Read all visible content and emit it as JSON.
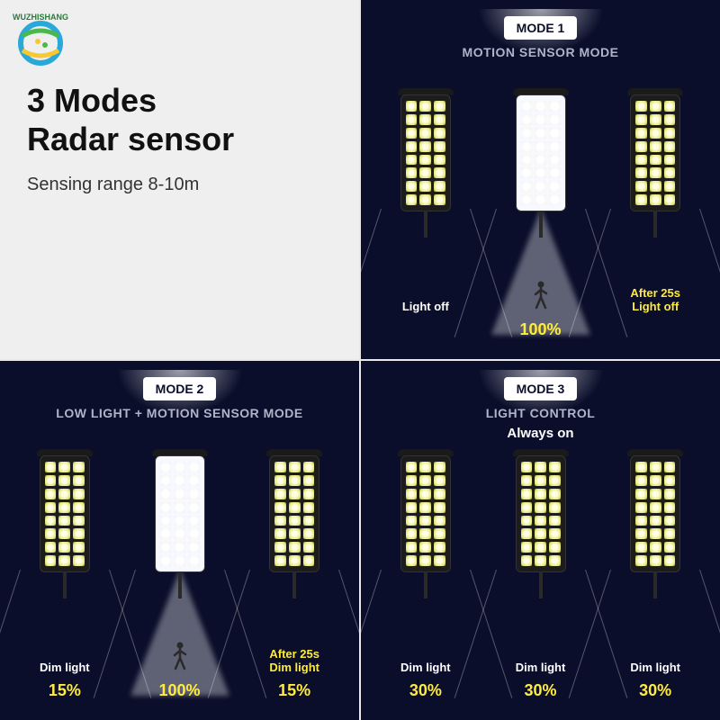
{
  "brand": "WUZHISHANG",
  "header": {
    "title_line1": "3 Modes",
    "title_line2": "Radar sensor",
    "subtitle": "Sensing range 8-10m"
  },
  "colors": {
    "bg_dark": "#0a0e2a",
    "bg_light": "#efefef",
    "accent_yellow": "#ffeb3b",
    "text_muted": "#b0b4c8"
  },
  "modes": [
    {
      "badge": "MODE 1",
      "title": "MOTION SENSOR MODE",
      "sub": "",
      "lights": [
        {
          "state": "off",
          "caption_top": "Light off",
          "caption_top_color": "white",
          "pct": "",
          "person": false
        },
        {
          "state": "on",
          "caption_top": "",
          "pct": "100%",
          "person": true
        },
        {
          "state": "off",
          "caption_top": "After 25s\nLight off",
          "caption_top_color": "yellow",
          "pct": "",
          "person": false
        }
      ]
    },
    {
      "badge": "MODE 2",
      "title": "LOW LIGHT + MOTION SENSOR MODE",
      "sub": "",
      "lights": [
        {
          "state": "off",
          "caption_top": "Dim light",
          "caption_top_color": "white",
          "pct": "15%",
          "person": false
        },
        {
          "state": "on",
          "caption_top": "",
          "pct": "100%",
          "person": true
        },
        {
          "state": "off",
          "caption_top": "After 25s\nDim light",
          "caption_top_color": "yellow",
          "pct": "15%",
          "person": false
        }
      ]
    },
    {
      "badge": "MODE 3",
      "title": "LIGHT CONTROL",
      "sub": "Always on",
      "lights": [
        {
          "state": "off",
          "caption_top": "Dim light",
          "caption_top_color": "white",
          "pct": "30%",
          "person": false
        },
        {
          "state": "off",
          "caption_top": "Dim light",
          "caption_top_color": "white",
          "pct": "30%",
          "person": false
        },
        {
          "state": "off",
          "caption_top": "Dim light",
          "caption_top_color": "white",
          "pct": "30%",
          "person": false
        }
      ]
    }
  ]
}
